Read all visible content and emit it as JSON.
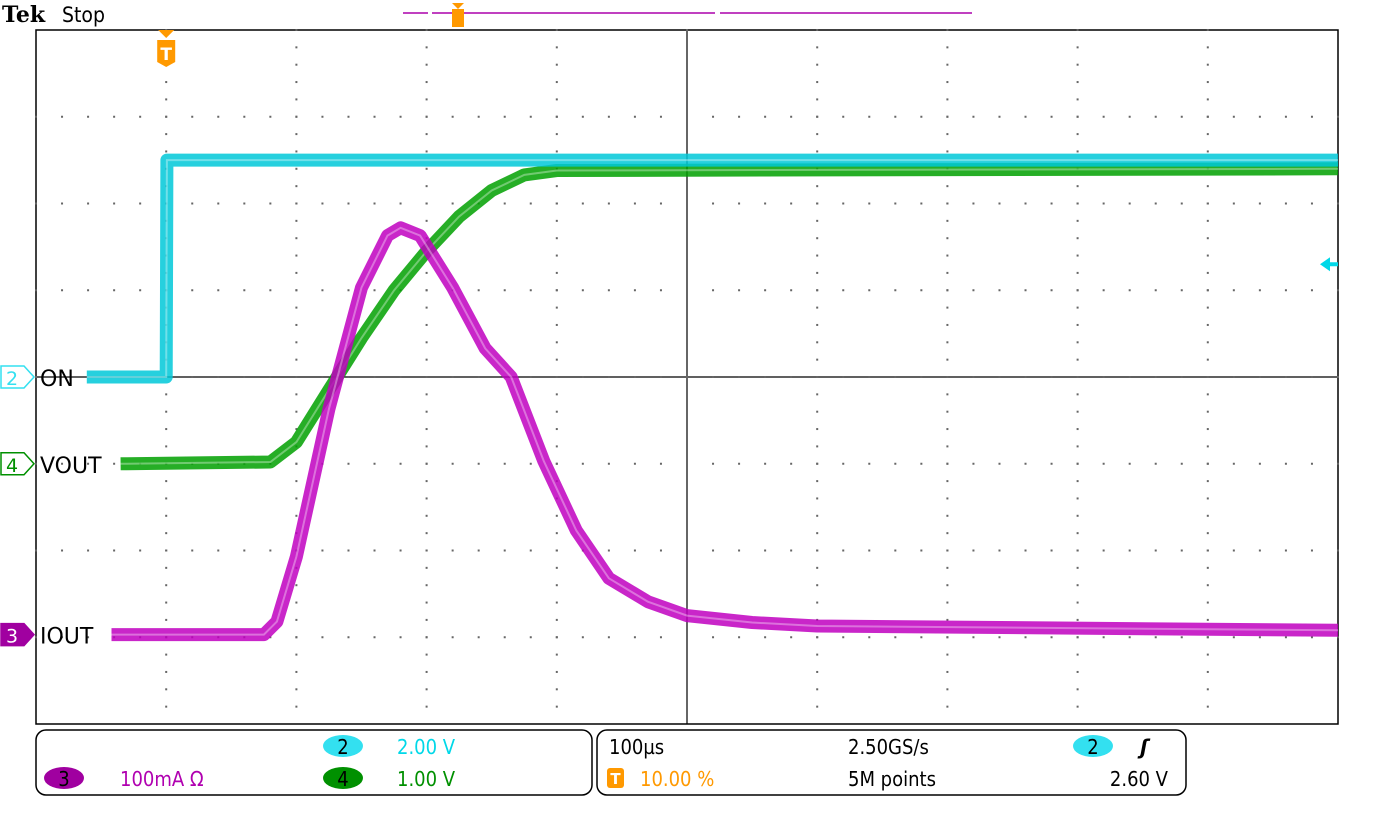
{
  "header": {
    "brand": "Tek",
    "status": "Stop"
  },
  "channels": [
    {
      "id": "2",
      "label": "ON",
      "color": "#00c8d8",
      "badge_color": "#33e0f0",
      "scale": "2.00 V",
      "volts_per_div": 2,
      "offset_div": 0
    },
    {
      "id": "4",
      "label": "VOUT",
      "color": "#00a000",
      "badge_color": "#009000",
      "scale": "1.00 V",
      "volts_per_div": 1,
      "offset_div": -1
    },
    {
      "id": "3",
      "label": "IOUT",
      "color": "#c000c0",
      "badge_color": "#a000a0",
      "scale": "100mA Ω",
      "ma_per_div": 100,
      "offset_div": -2.97
    }
  ],
  "timebase": {
    "scale": "100µs",
    "sample_rate": "2.50GS/s",
    "trigger_position": "10.00 %",
    "record": "5M points",
    "trigger_marker": "T"
  },
  "trigger": {
    "source": "2",
    "slope": "rising",
    "slope_glyph": "ʃ",
    "level": "2.60 V",
    "level_value": 2.6
  },
  "chart_data": {
    "type": "line",
    "x_unit": "µs",
    "xlim": [
      -100,
      900
    ],
    "x_divisions": 10,
    "y_divisions": 8,
    "grid": true,
    "series": [
      {
        "name": "ON",
        "channel": "2",
        "unit": "V",
        "x": [
          -61,
          0,
          0.5,
          900
        ],
        "y": [
          0,
          0,
          5.0,
          5.0
        ]
      },
      {
        "name": "VOUT",
        "channel": "4",
        "unit": "V",
        "x": [
          -35,
          80,
          100,
          125,
          150,
          175,
          200,
          225,
          250,
          275,
          300,
          900
        ],
        "y": [
          0,
          0.02,
          0.25,
          0.85,
          1.45,
          2.0,
          2.45,
          2.85,
          3.15,
          3.33,
          3.38,
          3.4
        ]
      },
      {
        "name": "IOUT",
        "channel": "3",
        "unit": "mA",
        "x": [
          -42,
          75,
          85,
          100,
          125,
          150,
          170,
          180,
          195,
          220,
          245,
          265,
          290,
          315,
          340,
          370,
          400,
          450,
          500,
          900
        ],
        "y": [
          0,
          0,
          15,
          90,
          260,
          400,
          460,
          469,
          460,
          400,
          330,
          297,
          200,
          120,
          65,
          38,
          22,
          14,
          10,
          5
        ]
      }
    ]
  }
}
